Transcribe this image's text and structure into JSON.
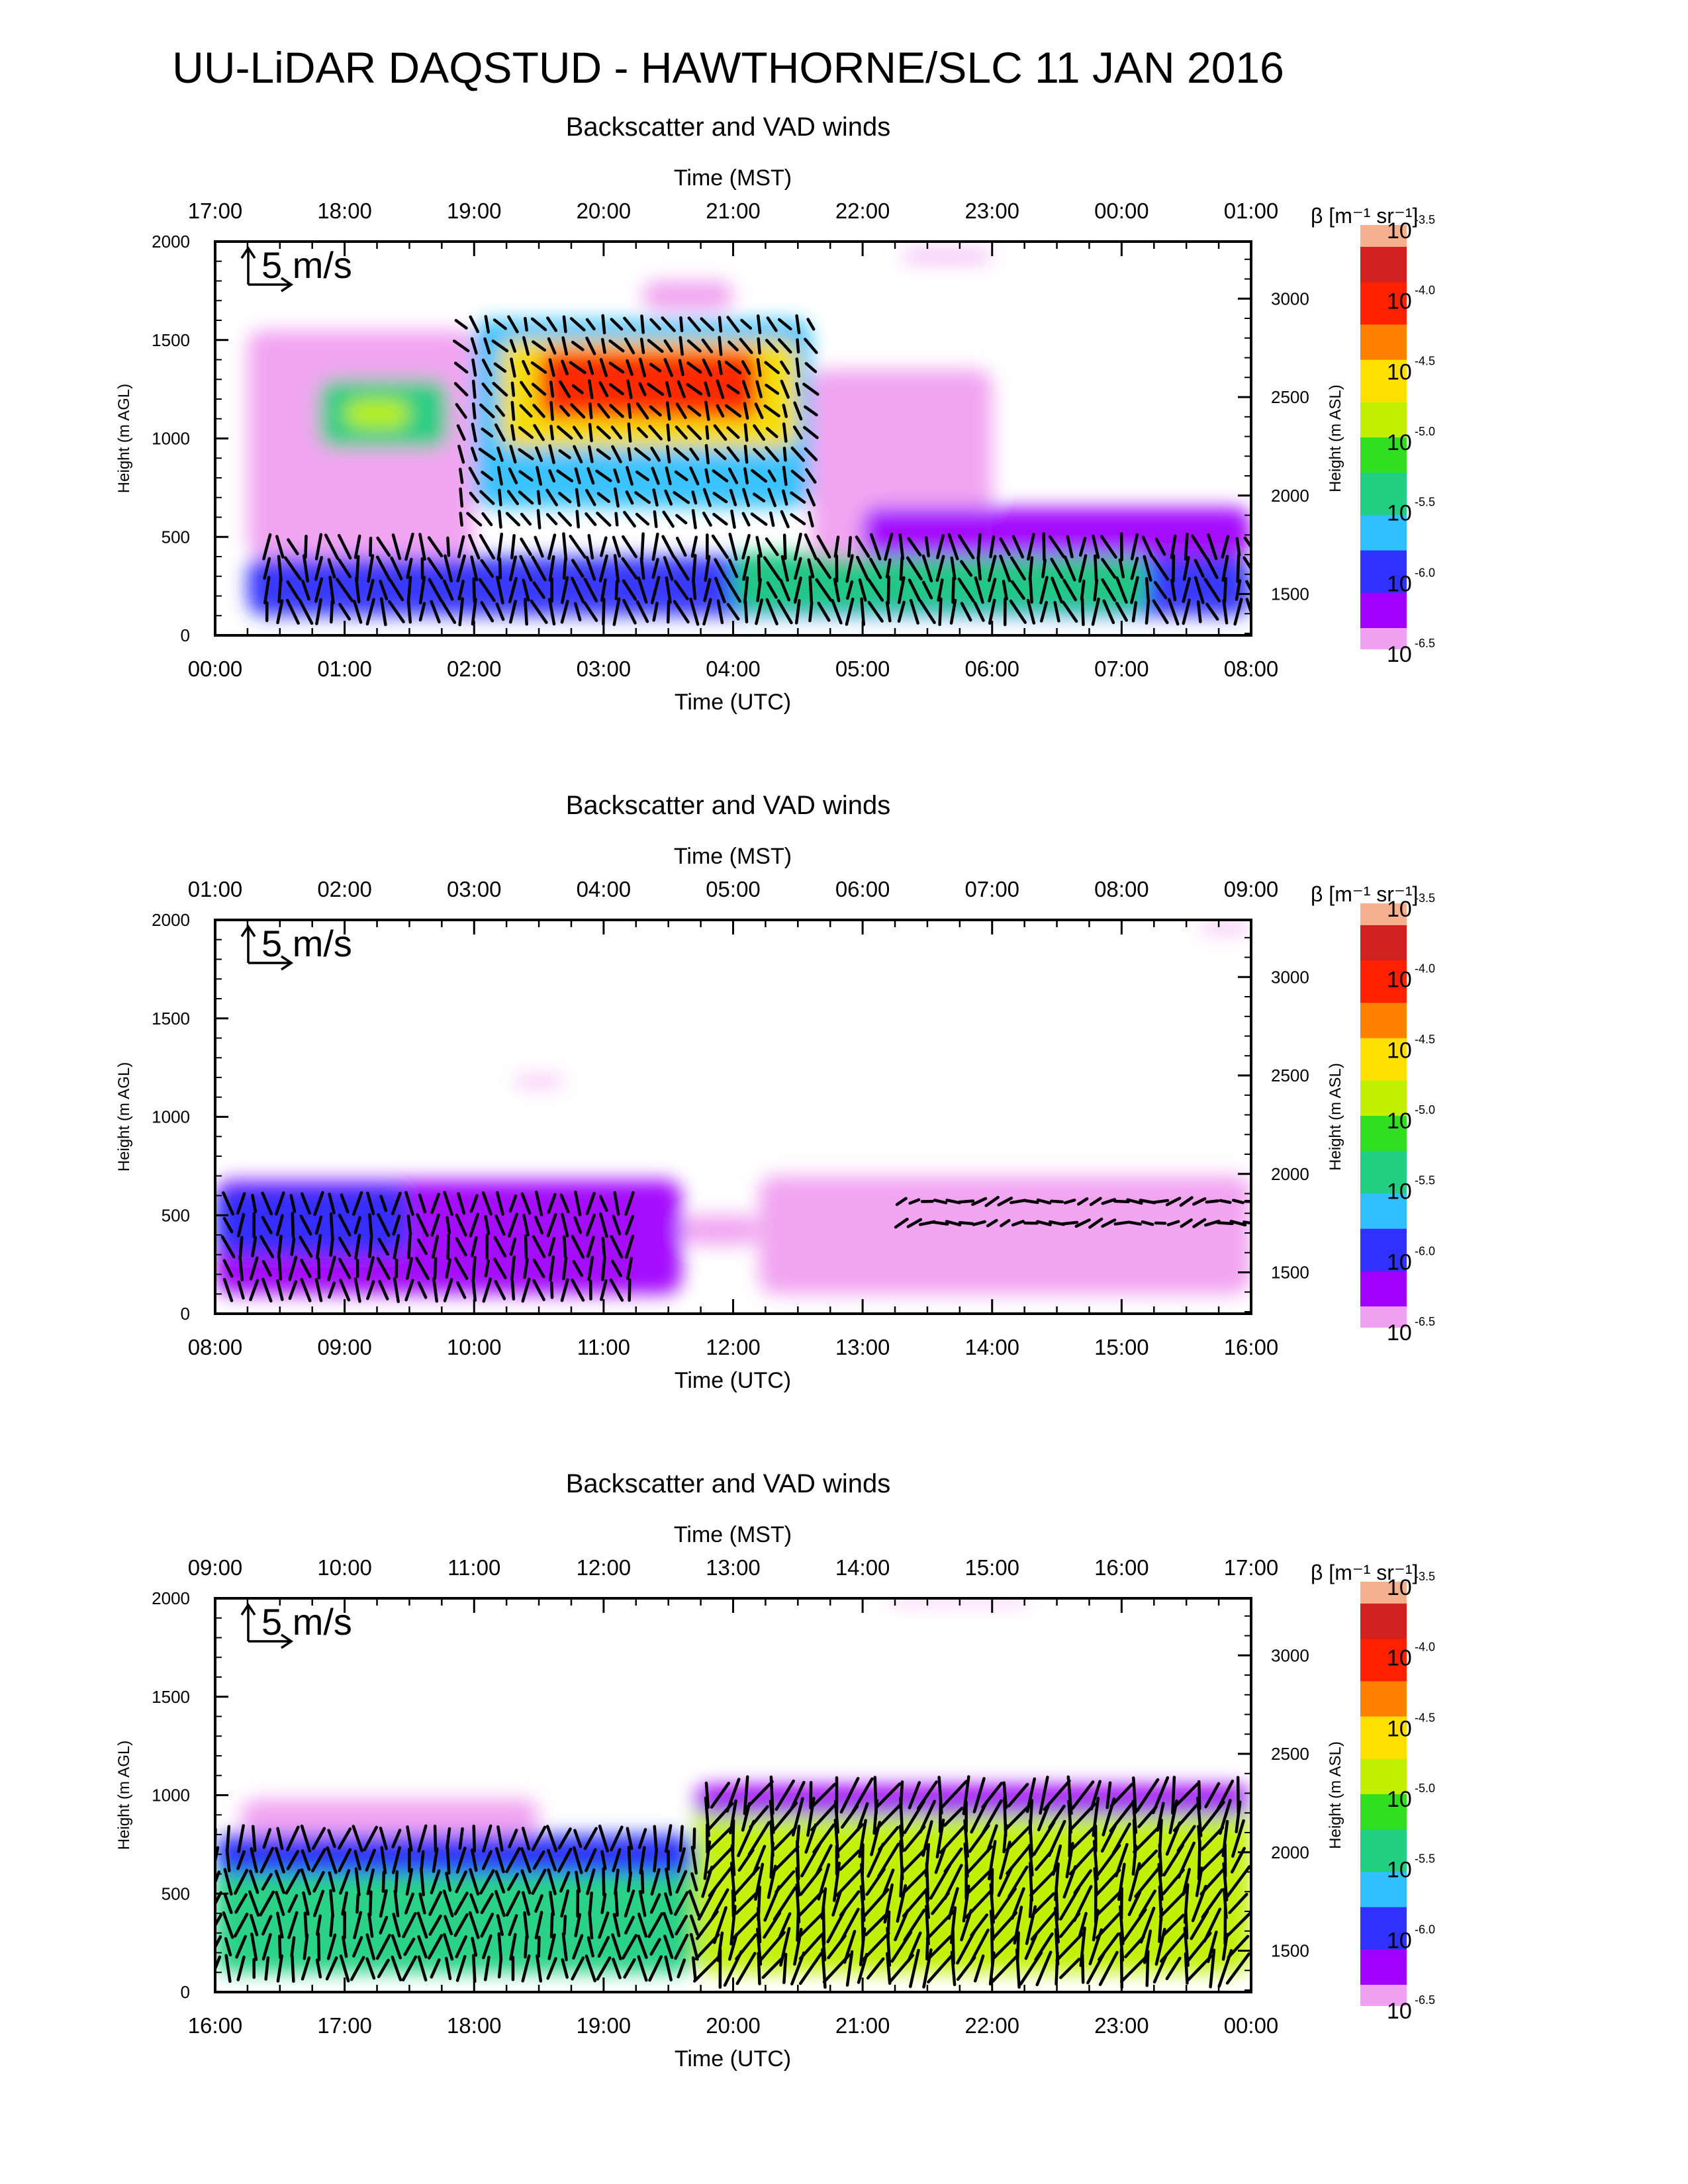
{
  "figure": {
    "title": "UU-LiDAR DAQSTUD - HAWTHORNE/SLC 11 JAN 2016"
  },
  "colorbar": {
    "label": "β [m⁻¹ sr⁻¹]",
    "ticks": [
      {
        "base": "10",
        "exp": "-3.5",
        "value": -3.5
      },
      {
        "base": "10",
        "exp": "-4.0",
        "value": -4.0
      },
      {
        "base": "10",
        "exp": "-4.5",
        "value": -4.5
      },
      {
        "base": "10",
        "exp": "-5.0",
        "value": -5.0
      },
      {
        "base": "10",
        "exp": "-5.5",
        "value": -5.5
      },
      {
        "base": "10",
        "exp": "-6.0",
        "value": -6.0
      },
      {
        "base": "10",
        "exp": "-6.5",
        "value": -6.5
      }
    ],
    "colors": [
      "#f0a0f0",
      "#a000ff",
      "#3030ff",
      "#30c0ff",
      "#20d080",
      "#30e020",
      "#c0f000",
      "#ffe000",
      "#ff8000",
      "#ff2000",
      "#d02020",
      "#f5b090"
    ]
  },
  "wind_key_label": "5 m/s",
  "chart_data": [
    {
      "type": "heatmap",
      "title": "Backscatter and VAD winds",
      "xlabel": "Time (UTC)",
      "x2label": "Time (MST)",
      "ylabel": "Height (m AGL)",
      "y2label": "Height (m ASL)",
      "x_ticks": [
        "00:00",
        "01:00",
        "02:00",
        "03:00",
        "04:00",
        "05:00",
        "06:00",
        "07:00",
        "08:00"
      ],
      "x2_ticks": [
        "17:00",
        "18:00",
        "19:00",
        "20:00",
        "21:00",
        "22:00",
        "23:00",
        "00:00",
        "01:00"
      ],
      "y_ticks": [
        "0",
        "500",
        "1000",
        "1500",
        "2000"
      ],
      "y2_ticks": [
        "1500",
        "2000",
        "2500",
        "3000"
      ],
      "ylim": [
        0,
        2000
      ],
      "y2_offset_m": 1290,
      "xlim_hours": [
        0,
        8
      ],
      "field": "log10 backscatter coefficient",
      "regions": [
        {
          "t0": 0.25,
          "t1": 8.0,
          "h0": 100,
          "h1": 400,
          "logbeta": -5.9
        },
        {
          "t0": 4.0,
          "t1": 7.2,
          "h0": 120,
          "h1": 420,
          "logbeta": -5.3
        },
        {
          "t0": 0.25,
          "t1": 2.0,
          "h0": 400,
          "h1": 1550,
          "logbeta": -6.4
        },
        {
          "t0": 2.0,
          "t1": 4.6,
          "h0": 650,
          "h1": 1600,
          "logbeta": -5.6
        },
        {
          "t0": 2.2,
          "t1": 4.5,
          "h0": 950,
          "h1": 1500,
          "logbeta": -4.5
        },
        {
          "t0": 2.5,
          "t1": 4.2,
          "h0": 1100,
          "h1": 1450,
          "logbeta": -4.05
        },
        {
          "t0": 0.8,
          "t1": 1.8,
          "h0": 950,
          "h1": 1300,
          "logbeta": -5.4
        },
        {
          "t0": 1.0,
          "t1": 1.5,
          "h0": 1050,
          "h1": 1200,
          "logbeta": -5.0
        },
        {
          "t0": 4.6,
          "t1": 6.0,
          "h0": 400,
          "h1": 1350,
          "logbeta": -6.45
        },
        {
          "t0": 5.0,
          "t1": 8.0,
          "h0": 400,
          "h1": 650,
          "logbeta": -6.3
        },
        {
          "t0": 3.3,
          "t1": 4.0,
          "h0": 1650,
          "h1": 1800,
          "logbeta": -6.5
        },
        {
          "t0": 5.3,
          "t1": 6.0,
          "h0": 1900,
          "h1": 1950,
          "logbeta": -6.5
        }
      ],
      "wind_regions": [
        {
          "t0": 0.4,
          "t1": 8.0,
          "h0": 80,
          "h1": 520,
          "direction_deg": 170,
          "speed_ms": 4.5
        },
        {
          "t0": 1.9,
          "t1": 4.6,
          "h0": 550,
          "h1": 1600,
          "direction_deg": 330,
          "speed_ms": 3.0
        }
      ]
    },
    {
      "type": "heatmap",
      "title": "Backscatter and VAD winds",
      "xlabel": "Time (UTC)",
      "x2label": "Time (MST)",
      "ylabel": "Height (m AGL)",
      "y2label": "Height (m ASL)",
      "x_ticks": [
        "08:00",
        "09:00",
        "10:00",
        "11:00",
        "12:00",
        "13:00",
        "14:00",
        "15:00",
        "16:00"
      ],
      "x2_ticks": [
        "01:00",
        "02:00",
        "03:00",
        "04:00",
        "05:00",
        "06:00",
        "07:00",
        "08:00",
        "09:00"
      ],
      "y_ticks": [
        "0",
        "500",
        "1000",
        "1500",
        "2000"
      ],
      "y2_ticks": [
        "1500",
        "2000",
        "2500",
        "3000"
      ],
      "ylim": [
        0,
        2000
      ],
      "y2_offset_m": 1290,
      "xlim_hours": [
        8,
        16
      ],
      "field": "log10 backscatter coefficient",
      "regions": [
        {
          "t0": 8.0,
          "t1": 11.6,
          "h0": 100,
          "h1": 680,
          "logbeta": -6.3
        },
        {
          "t0": 8.0,
          "t1": 9.5,
          "h0": 300,
          "h1": 650,
          "logbeta": -6.05
        },
        {
          "t0": 11.6,
          "t1": 12.2,
          "h0": 350,
          "h1": 500,
          "logbeta": -6.4
        },
        {
          "t0": 12.2,
          "t1": 16.0,
          "h0": 100,
          "h1": 700,
          "logbeta": -6.4
        },
        {
          "t0": 10.3,
          "t1": 10.7,
          "h0": 1160,
          "h1": 1200,
          "logbeta": -6.5
        },
        {
          "t0": 15.6,
          "t1": 16.0,
          "h0": 1940,
          "h1": 1980,
          "logbeta": -6.5
        }
      ],
      "wind_regions": [
        {
          "t0": 8.1,
          "t1": 11.2,
          "h0": 80,
          "h1": 650,
          "direction_deg": 175,
          "speed_ms": 4.0
        },
        {
          "t0": 13.3,
          "t1": 16.0,
          "h0": 420,
          "h1": 600,
          "direction_deg": 260,
          "speed_ms": 2.5
        }
      ]
    },
    {
      "type": "heatmap",
      "title": "Backscatter and VAD winds",
      "xlabel": "Time (UTC)",
      "x2label": "Time (MST)",
      "ylabel": "Height (m AGL)",
      "y2label": "Height (m ASL)",
      "x_ticks": [
        "16:00",
        "17:00",
        "18:00",
        "19:00",
        "20:00",
        "21:00",
        "22:00",
        "23:00",
        "00:00"
      ],
      "x2_ticks": [
        "09:00",
        "10:00",
        "11:00",
        "12:00",
        "13:00",
        "14:00",
        "15:00",
        "16:00",
        "17:00"
      ],
      "y_ticks": [
        "0",
        "500",
        "1000",
        "1500",
        "2000"
      ],
      "y2_ticks": [
        "1500",
        "2000",
        "2500",
        "3000"
      ],
      "ylim": [
        0,
        2000
      ],
      "y2_offset_m": 1290,
      "xlim_hours": [
        16,
        24
      ],
      "field": "log10 backscatter coefficient",
      "regions": [
        {
          "t0": 16.0,
          "t1": 19.7,
          "h0": 100,
          "h1": 780,
          "logbeta": -5.3
        },
        {
          "t0": 16.0,
          "t1": 19.7,
          "h0": 600,
          "h1": 800,
          "logbeta": -6.0
        },
        {
          "t0": 19.7,
          "t1": 24.0,
          "h0": 100,
          "h1": 1020,
          "logbeta": -5.0
        },
        {
          "t0": 20.3,
          "t1": 23.6,
          "h0": 200,
          "h1": 700,
          "logbeta": -4.9
        },
        {
          "t0": 19.7,
          "t1": 24.0,
          "h0": 900,
          "h1": 1050,
          "logbeta": -6.2
        },
        {
          "t0": 16.2,
          "t1": 18.5,
          "h0": 800,
          "h1": 980,
          "logbeta": -6.45
        },
        {
          "t0": 21.2,
          "t1": 22.3,
          "h0": 1980,
          "h1": 2010,
          "logbeta": -6.5
        }
      ],
      "wind_regions": [
        {
          "t0": 16.0,
          "t1": 19.8,
          "h0": 80,
          "h1": 780,
          "direction_deg": 185,
          "speed_ms": 4.5
        },
        {
          "t0": 19.8,
          "t1": 24.0,
          "h0": 80,
          "h1": 1000,
          "direction_deg": 200,
          "speed_ms": 6.5
        }
      ]
    }
  ]
}
